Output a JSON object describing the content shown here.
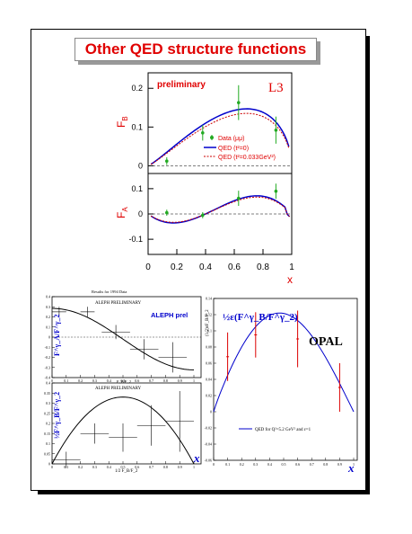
{
  "title": "Other QED structure functions",
  "colors": {
    "title": "#e00000",
    "data": "#22aa22",
    "qed0": "#0000cc",
    "qedt": "#cc0000",
    "opal": "#0000cc",
    "opal_err": "#dd0000"
  },
  "chart_data": [
    {
      "type": "line",
      "panel": "L3 F_B",
      "label_prelim": "preliminary",
      "logo": "L3",
      "ylabel": "F_B",
      "yticks": [
        "0",
        "0.1",
        "0.2"
      ],
      "ylim": [
        -0.02,
        0.24
      ],
      "xlim": [
        0,
        1
      ],
      "legend": [
        "Data (μμ)",
        "QED (t²=0)",
        "QED (t²=0.033GeV²)"
      ],
      "data_points": [
        {
          "x": 0.13,
          "y": 0.012,
          "err": 0.01
        },
        {
          "x": 0.38,
          "y": 0.085,
          "err": 0.02
        },
        {
          "x": 0.63,
          "y": 0.163,
          "err": 0.045
        },
        {
          "x": 0.89,
          "y": 0.092,
          "err": 0.035
        }
      ]
    },
    {
      "type": "line",
      "panel": "L3 F_A",
      "ylabel": "F_A",
      "yticks": [
        "-0.1",
        "0",
        "0.1"
      ],
      "ylim": [
        -0.16,
        0.16
      ],
      "xlabel": "x",
      "xticks": [
        "0",
        "0.2",
        "0.4",
        "0.6",
        "0.8",
        "1"
      ],
      "xlim": [
        0,
        1
      ],
      "data_points": [
        {
          "x": 0.13,
          "y": 0.005,
          "err": 0.012
        },
        {
          "x": 0.38,
          "y": -0.005,
          "err": 0.012
        },
        {
          "x": 0.63,
          "y": 0.062,
          "err": 0.03
        },
        {
          "x": 0.89,
          "y": 0.09,
          "err": 0.03
        }
      ]
    },
    {
      "type": "line",
      "panel": "ALEPH FA/F2",
      "header": "Results for 1994 Data",
      "label": "ALEPH PRELIMINARY",
      "prelim_tag": "ALEPH prel",
      "ylabel": "F^γ_A/F^γ_2",
      "xlabel": "F_B/F_2",
      "ylim": [
        -0.4,
        0.4
      ],
      "yticks": [
        "0.4",
        "0.3",
        "0.2",
        "0.1",
        "0",
        "-0.1",
        "-0.2",
        "-0.3",
        "-0.4"
      ],
      "xticks": [
        "0",
        "0.1",
        "0.2",
        "0.3",
        "0.4",
        "0.5",
        "0.6",
        "0.7",
        "0.8",
        "0.9",
        "1"
      ],
      "data_points": [
        {
          "x": 0.05,
          "y": 0.25,
          "xerr": 0.05,
          "err": 0.05
        },
        {
          "x": 0.25,
          "y": 0.25,
          "xerr": 0.05,
          "err": 0.05
        },
        {
          "x": 0.45,
          "y": 0.05,
          "xerr": 0.1,
          "err": 0.07
        },
        {
          "x": 0.65,
          "y": -0.12,
          "xerr": 0.1,
          "err": 0.1
        },
        {
          "x": 0.85,
          "y": -0.2,
          "xerr": 0.1,
          "err": 0.15
        }
      ]
    },
    {
      "type": "line",
      "panel": "ALEPH FB/F2",
      "label": "ALEPH PRELIMINARY",
      "ylabel": "½F^γ_B/F^γ_2",
      "xlabel": "1/2 F_B/F_2",
      "ylim": [
        0,
        0.4
      ],
      "yticks": [
        "0.4",
        "0.35",
        "0.3",
        "0.25",
        "0.2",
        "0.15",
        "0.1",
        "0.05",
        "0"
      ],
      "xticks": [
        "0",
        "0.1",
        "0.2",
        "0.3",
        "0.4",
        "0.5",
        "0.6",
        "0.7",
        "0.8",
        "0.9",
        "1"
      ],
      "data_points": [
        {
          "x": 0.1,
          "y": 0.02,
          "xerr": 0.1,
          "err": 0.04
        },
        {
          "x": 0.3,
          "y": 0.15,
          "xerr": 0.1,
          "err": 0.05
        },
        {
          "x": 0.5,
          "y": 0.13,
          "xerr": 0.1,
          "err": 0.07
        },
        {
          "x": 0.7,
          "y": 0.19,
          "xerr": 0.1,
          "err": 0.1
        },
        {
          "x": 0.9,
          "y": 0.21,
          "xerr": 0.1,
          "err": 0.15
        }
      ]
    },
    {
      "type": "line",
      "panel": "OPAL",
      "label": "OPAL",
      "ylabel": "(1/2)εF_B/F_2",
      "formula": "½ε(F^γ_B/F^γ_2)",
      "legend": "QED for Q²=5.2 GeV² and ε=1",
      "xlabel": "x",
      "ylim": [
        -0.06,
        0.14
      ],
      "yticks": [
        "0.14",
        "0.12",
        "0.1",
        "0.08",
        "0.06",
        "0.04",
        "0.02",
        "0",
        "-0.02",
        "-0.04",
        "-0.06"
      ],
      "xticks": [
        "0",
        "0.1",
        "0.2",
        "0.3",
        "0.4",
        "0.5",
        "0.6",
        "0.7",
        "0.8",
        "0.9",
        "1"
      ],
      "data_points": [
        {
          "x": 0.1,
          "y": 0.068,
          "err": 0.03
        },
        {
          "x": 0.3,
          "y": 0.095,
          "err": 0.028
        },
        {
          "x": 0.6,
          "y": 0.09,
          "err": 0.035
        },
        {
          "x": 0.9,
          "y": 0.03,
          "err": 0.03
        }
      ]
    }
  ]
}
